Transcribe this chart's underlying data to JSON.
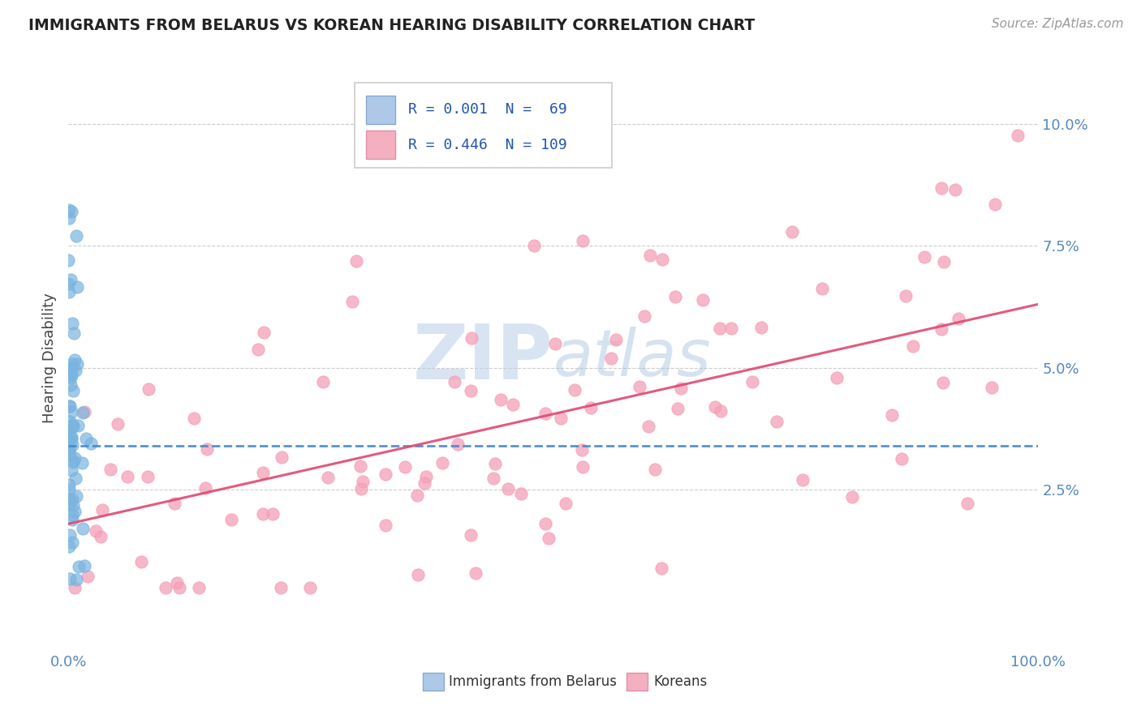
{
  "title": "IMMIGRANTS FROM BELARUS VS KOREAN HEARING DISABILITY CORRELATION CHART",
  "source": "Source: ZipAtlas.com",
  "ylabel": "Hearing Disability",
  "xlim": [
    0.0,
    1.0
  ],
  "ylim": [
    -0.008,
    0.112
  ],
  "yticks": [
    0.025,
    0.05,
    0.075,
    0.1
  ],
  "ytick_labels": [
    "2.5%",
    "5.0%",
    "7.5%",
    "10.0%"
  ],
  "blue_scatter_color": "#7ab4e0",
  "pink_scatter_color": "#f4a0b8",
  "blue_line_color": "#4488cc",
  "pink_line_color": "#e04870",
  "watermark_color": "#c8daf0",
  "background_color": "#ffffff",
  "legend_box_color": "#dddddd",
  "blue_trend_y": 0.034,
  "pink_trend_start": 0.018,
  "pink_trend_end": 0.063
}
